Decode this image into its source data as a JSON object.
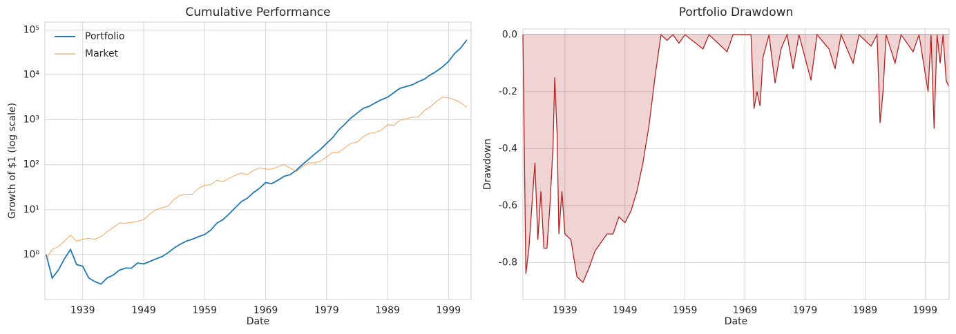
{
  "chart_data": [
    {
      "type": "line",
      "title": "Cumulative Performance",
      "xlabel": "Date",
      "ylabel": "Growth of $1 (log scale)",
      "log_y": true,
      "grid": true,
      "legend": "upper left",
      "x": [
        1933,
        1934,
        1935,
        1936,
        1937,
        1938,
        1939,
        1940,
        1941,
        1942,
        1943,
        1944,
        1945,
        1946,
        1947,
        1948,
        1949,
        1950,
        1951,
        1952,
        1953,
        1954,
        1955,
        1956,
        1957,
        1958,
        1959,
        1960,
        1961,
        1962,
        1963,
        1964,
        1965,
        1966,
        1967,
        1968,
        1969,
        1970,
        1971,
        1972,
        1973,
        1974,
        1975,
        1976,
        1977,
        1978,
        1979,
        1980,
        1981,
        1982,
        1983,
        1984,
        1985,
        1986,
        1987,
        1988,
        1989,
        1990,
        1991,
        1992,
        1993,
        1994,
        1995,
        1996,
        1997,
        1998,
        1999,
        2000,
        2001,
        2002
      ],
      "series": [
        {
          "name": "Portfolio",
          "color": "#1f77b4",
          "values": [
            1.0,
            0.3,
            0.45,
            0.8,
            1.3,
            0.6,
            0.55,
            0.3,
            0.25,
            0.22,
            0.3,
            0.35,
            0.45,
            0.5,
            0.5,
            0.65,
            0.62,
            0.7,
            0.8,
            0.9,
            1.1,
            1.4,
            1.7,
            2.0,
            2.2,
            2.5,
            2.8,
            3.5,
            5,
            6,
            8,
            11,
            15,
            18,
            24,
            30,
            40,
            38,
            45,
            55,
            60,
            75,
            100,
            130,
            170,
            220,
            300,
            400,
            600,
            800,
            1100,
            1400,
            1800,
            2000,
            2400,
            2800,
            3200,
            4000,
            5000,
            5500,
            6000,
            7000,
            8000,
            10000,
            12000,
            15000,
            20000,
            30000,
            40000,
            60000
          ]
        },
        {
          "name": "Market",
          "color": "#f7a45c",
          "values": [
            0.8,
            1.3,
            1.5,
            2.0,
            2.7,
            2.0,
            2.2,
            2.3,
            2.2,
            2.5,
            3.2,
            4,
            5,
            5,
            5.2,
            5.5,
            6,
            8,
            10,
            11,
            12,
            17,
            21,
            22,
            22,
            30,
            35,
            36,
            45,
            42,
            50,
            58,
            65,
            60,
            75,
            85,
            80,
            80,
            90,
            100,
            85,
            70,
            90,
            110,
            110,
            120,
            150,
            190,
            190,
            240,
            300,
            320,
            420,
            500,
            520,
            600,
            780,
            750,
            980,
            1050,
            1150,
            1150,
            1600,
            1950,
            2550,
            3200,
            3100,
            2800,
            2400,
            1900
          ]
        }
      ],
      "xlim": [
        1932.8,
        2002.7
      ],
      "xticks": [
        1939,
        1949,
        1959,
        1969,
        1979,
        1989,
        1999
      ],
      "ylim": [
        0.1,
        150000
      ],
      "yticks": [
        {
          "value": 1,
          "label": "10⁰"
        },
        {
          "value": 10,
          "label": "10¹"
        },
        {
          "value": 100,
          "label": "10²"
        },
        {
          "value": 1000,
          "label": "10³"
        },
        {
          "value": 10000,
          "label": "10⁴"
        },
        {
          "value": 100000,
          "label": "10⁵"
        }
      ]
    },
    {
      "type": "area",
      "title": "Portfolio Drawdown",
      "xlabel": "Date",
      "ylabel": "Drawdown",
      "grid": true,
      "x": [
        1932.0,
        1932.5,
        1933,
        1934,
        1934.5,
        1935,
        1935.5,
        1936,
        1936.5,
        1937,
        1937.3,
        1937.7,
        1938,
        1938.5,
        1939,
        1940,
        1941,
        1942,
        1943,
        1944,
        1945,
        1946,
        1947,
        1948,
        1949,
        1950,
        1951,
        1952,
        1953,
        1954,
        1955,
        1956,
        1957,
        1958,
        1959,
        1962,
        1963,
        1966,
        1967,
        1970,
        1970.5,
        1971,
        1971.5,
        1972,
        1973,
        1974,
        1975,
        1976,
        1977,
        1978,
        1980,
        1981,
        1983,
        1984,
        1985,
        1987,
        1988,
        1990,
        1991,
        1991.5,
        1992,
        1992.5,
        1994,
        1995,
        1997,
        1998,
        1999.5,
        2000,
        2000.5,
        2001,
        2001.5,
        2002,
        2002.5,
        2002.9
      ],
      "series": [
        {
          "name": "Drawdown",
          "color": "#b22222",
          "values": [
            0,
            -0.84,
            -0.75,
            -0.45,
            -0.72,
            -0.55,
            -0.75,
            -0.75,
            -0.6,
            -0.4,
            -0.15,
            -0.35,
            -0.7,
            -0.55,
            -0.7,
            -0.72,
            -0.85,
            -0.87,
            -0.82,
            -0.76,
            -0.73,
            -0.7,
            -0.7,
            -0.64,
            -0.66,
            -0.62,
            -0.55,
            -0.45,
            -0.32,
            -0.15,
            0,
            -0.02,
            0,
            -0.03,
            0,
            -0.05,
            0,
            -0.06,
            0,
            0,
            -0.26,
            -0.2,
            -0.25,
            -0.08,
            0,
            -0.17,
            -0.05,
            0,
            -0.12,
            0,
            -0.16,
            0,
            -0.05,
            -0.12,
            0,
            -0.1,
            0,
            -0.04,
            0,
            -0.31,
            -0.2,
            0,
            -0.1,
            0,
            -0.06,
            0,
            -0.2,
            0,
            -0.33,
            0,
            -0.1,
            0,
            -0.16,
            -0.18
          ]
        }
      ],
      "xlim": [
        1932.0,
        2003.0
      ],
      "xticks": [
        1939,
        1949,
        1959,
        1969,
        1979,
        1989,
        1999
      ],
      "ylim": [
        -0.93,
        0.02
      ],
      "yticks": [
        {
          "value": 0,
          "label": "0.0"
        },
        -0.2,
        -0.4,
        -0.6,
        -0.8
      ]
    }
  ]
}
